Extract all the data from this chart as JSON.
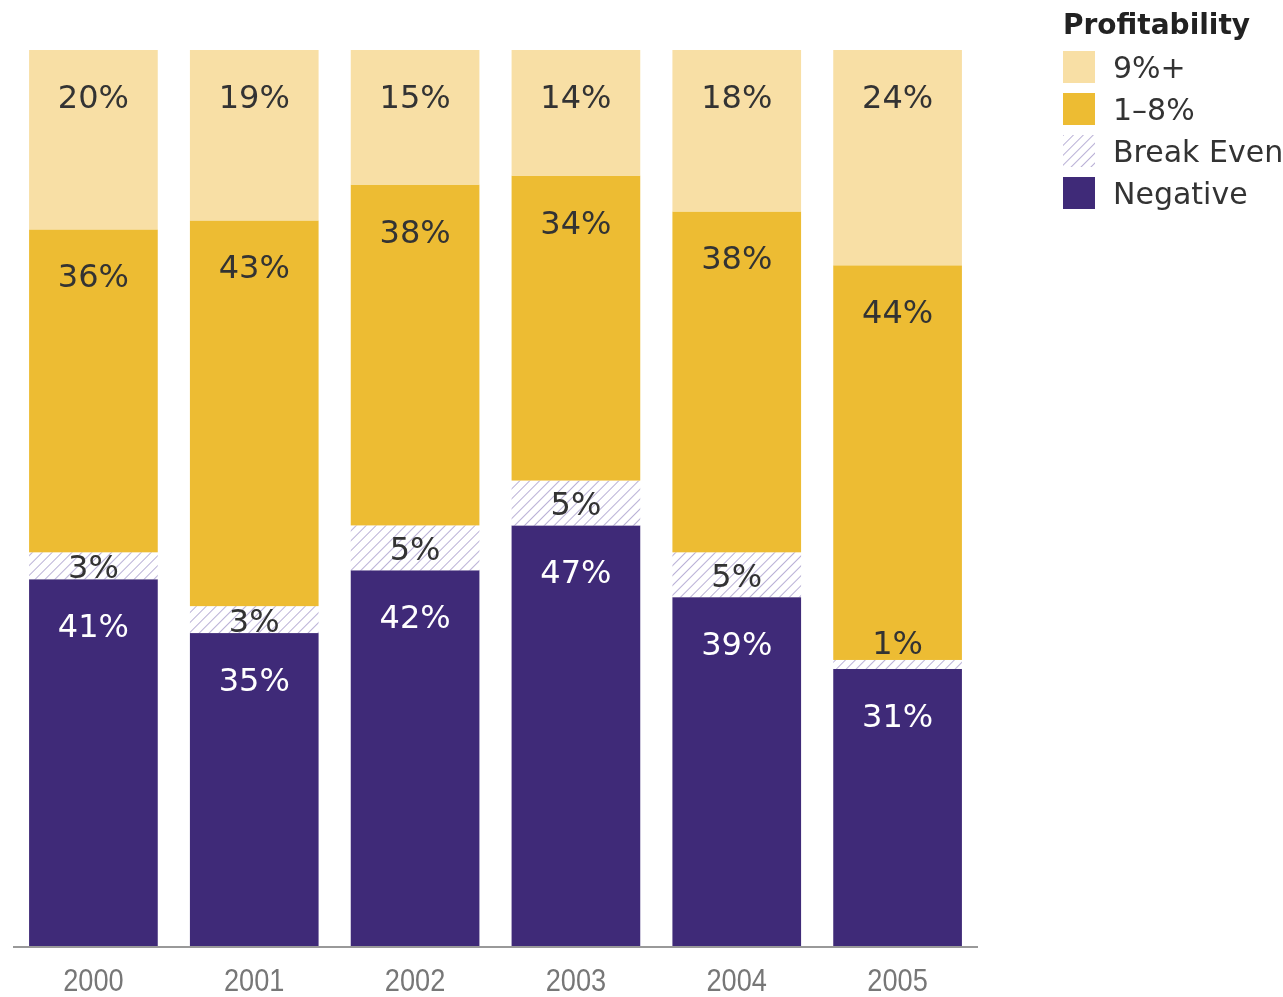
{
  "chart_data": {
    "type": "bar",
    "stacked": true,
    "legend": "top right",
    "legend_title": "Profitability",
    "categories": [
      "2000",
      "2001",
      "2002",
      "2003",
      "2004",
      "2005"
    ],
    "series": [
      {
        "name": "Negative",
        "color": "#3f2a78",
        "values": [
          41,
          35,
          42,
          47,
          39,
          31
        ],
        "value_labels": [
          "41%",
          "35%",
          "42%",
          "47%",
          "39%",
          "31%"
        ]
      },
      {
        "name": "Break Even",
        "color": "#b9b0d6",
        "values": [
          3,
          3,
          5,
          5,
          5,
          1
        ],
        "value_labels": [
          "3%",
          "3%",
          "5%",
          "5%",
          "5%",
          "1%"
        ]
      },
      {
        "name": "1–8%",
        "color": "#edbc33",
        "values": [
          36,
          43,
          38,
          34,
          38,
          44
        ],
        "value_labels": [
          "36%",
          "43%",
          "38%",
          "34%",
          "38%",
          "44%"
        ]
      },
      {
        "name": "9%+",
        "color": "#f8dfa5",
        "values": [
          20,
          19,
          15,
          14,
          18,
          24
        ],
        "value_labels": [
          "20%",
          "19%",
          "15%",
          "14%",
          "18%",
          "24%"
        ]
      }
    ]
  }
}
